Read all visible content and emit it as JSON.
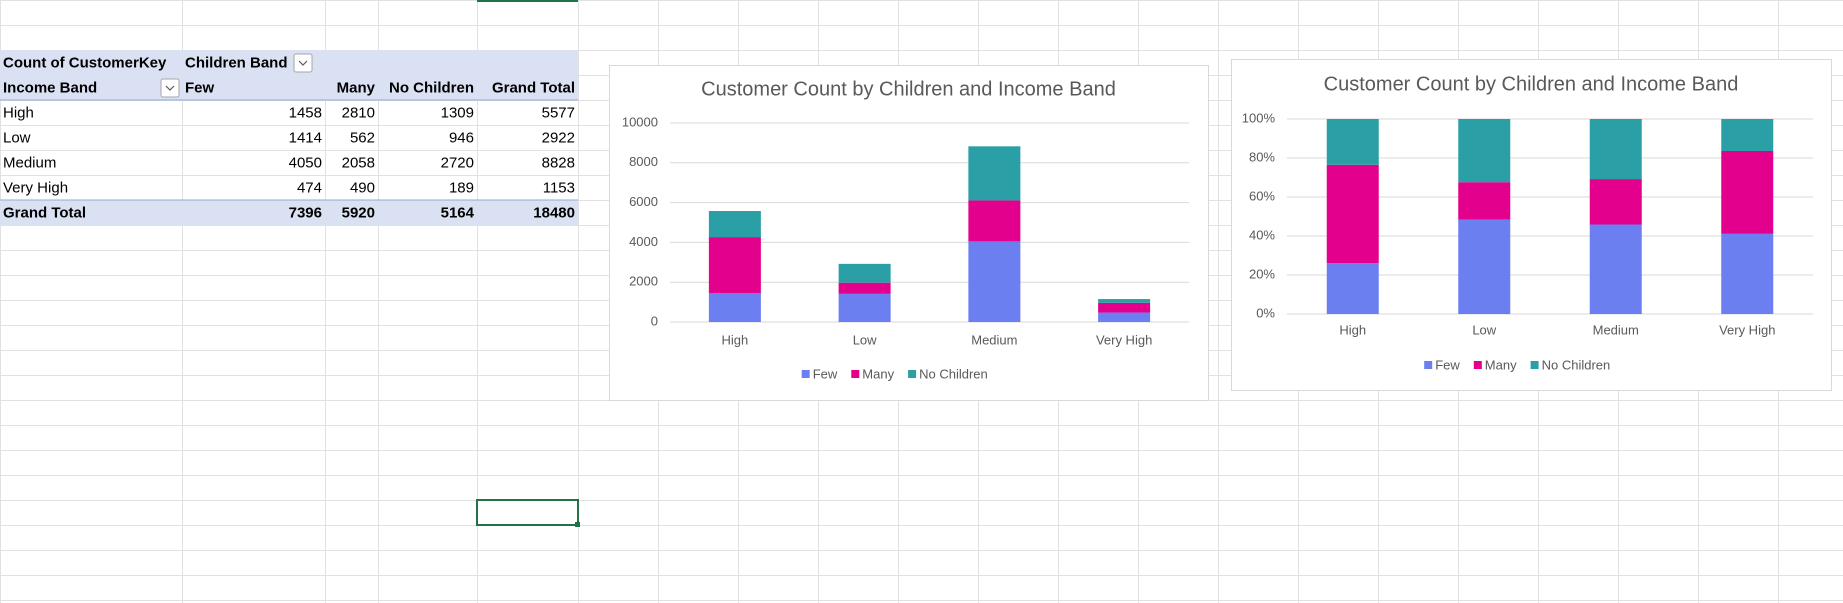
{
  "table": {
    "rows": [
      [
        "Count of CustomerKey",
        "Children Band"
      ],
      [
        "Income Band",
        "Few",
        "Many",
        "No Children",
        "Grand Total"
      ],
      [
        "High",
        1458,
        2810,
        1309,
        5577
      ],
      [
        "Low",
        1414,
        562,
        946,
        2922
      ],
      [
        "Medium",
        4050,
        2058,
        2720,
        8828
      ],
      [
        "Very High",
        474,
        490,
        189,
        1153
      ],
      [
        "Grand Total",
        7396,
        5920,
        5164,
        18480
      ]
    ]
  },
  "chart_data": [
    {
      "type": "bar",
      "stacked": true,
      "title": "Customer Count by Children and Income Band",
      "categories": [
        "High",
        "Low",
        "Medium",
        "Very High"
      ],
      "series": [
        {
          "name": "Few",
          "color": "#6b7ff0",
          "values": [
            1458,
            1414,
            4050,
            474
          ]
        },
        {
          "name": "Many",
          "color": "#e3008c",
          "values": [
            2810,
            562,
            2058,
            490
          ]
        },
        {
          "name": "No Children",
          "color": "#2b9fa6",
          "values": [
            1309,
            946,
            2720,
            189
          ]
        }
      ],
      "ylim": [
        0,
        10000
      ],
      "yticks": [
        0,
        2000,
        4000,
        6000,
        8000,
        10000
      ],
      "grid": true,
      "legend": "bottom"
    },
    {
      "type": "bar",
      "stacked": true,
      "title": "Customer Count by Children and Income Band",
      "categories": [
        "High",
        "Low",
        "Medium",
        "Very High"
      ],
      "series": [
        {
          "name": "Few",
          "color": "#6b7ff0",
          "values": [
            26.1,
            48.4,
            45.9,
            41.1
          ]
        },
        {
          "name": "Many",
          "color": "#e3008c",
          "values": [
            50.4,
            19.2,
            23.3,
            42.5
          ]
        },
        {
          "name": "No Children",
          "color": "#2b9fa6",
          "values": [
            23.5,
            32.4,
            30.8,
            16.4
          ]
        }
      ],
      "ylim": [
        0,
        100
      ],
      "yticks": [
        {
          "value": 0,
          "label": "0%"
        },
        {
          "value": 20,
          "label": "20%"
        },
        {
          "value": 40,
          "label": "40%"
        },
        {
          "value": 60,
          "label": "60%"
        },
        {
          "value": 80,
          "label": "80%"
        },
        {
          "value": 100,
          "label": "100%"
        }
      ],
      "grid": true,
      "legend": "bottom"
    }
  ]
}
